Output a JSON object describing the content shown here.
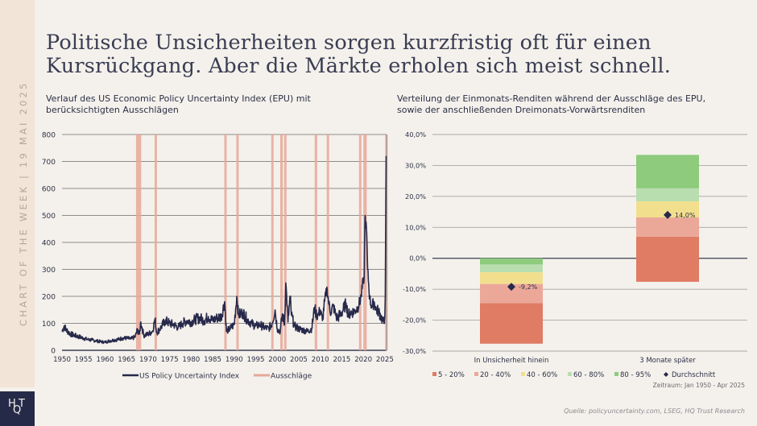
{
  "sidebar": {
    "label": "CHART OF THE WEEK | 19 MAI 2025"
  },
  "logo": {
    "text_top_left": "H",
    "text_bottom": "Q",
    "text_top_right": "T"
  },
  "title": {
    "line1": "Politische Unsicherheiten sorgen kurzfristig oft für einen",
    "line2": "Kursrückgang. Aber die Märkte erholen sich meist schnell."
  },
  "footer": {
    "period": "Zeitraum: Jan 1950 - Apr 2025",
    "source": "Quelle: policyuncertainty.com, LSEG, HQ Trust Research"
  },
  "colors": {
    "line": "#26294a",
    "band": "#e6a899",
    "grid": "#a8a6a2",
    "q5_20": "#e07b64",
    "q20_40": "#eba899",
    "q40_60": "#f2df8e",
    "q60_80": "#b8deb0",
    "q80_95": "#8ecb7d",
    "avg": "#26294a"
  },
  "chart_data": [
    {
      "type": "line",
      "title": "Verlauf des US Economic Policy Uncertainty Index (EPU) mit berücksichtigten Ausschlägen",
      "title_line1": "Verlauf des US Economic Policy Uncertainty Index (EPU) mit",
      "title_line2": "berücksichtigten Ausschlägen",
      "xlabel": "",
      "ylabel": "",
      "xlim": [
        1950,
        2025.4
      ],
      "ylim": [
        0,
        800
      ],
      "x_ticks": [
        "1950",
        "1955",
        "1960",
        "1965",
        "1970",
        "1975",
        "1980",
        "1985",
        "1990",
        "1995",
        "2000",
        "2005",
        "2010",
        "2015",
        "2020",
        "2025"
      ],
      "y_ticks": [
        "0",
        "100",
        "200",
        "300",
        "400",
        "500",
        "600",
        "700",
        "800"
      ],
      "grid": true,
      "legend": {
        "position": "bottom",
        "entries": [
          "US Policy Uncertainty Index",
          "Ausschläge"
        ]
      },
      "series": [
        {
          "name": "US Policy Uncertainty Index",
          "x": [
            1950,
            1950.5,
            1951,
            1952,
            1953,
            1954,
            1955,
            1956,
            1957,
            1958,
            1959,
            1960,
            1961,
            1962,
            1963,
            1964,
            1965,
            1966,
            1967,
            1967.5,
            1968,
            1968.3,
            1969,
            1970,
            1971,
            1971.6,
            1972,
            1973,
            1974,
            1975,
            1976,
            1977,
            1978,
            1979,
            1980,
            1981,
            1982,
            1983,
            1984,
            1985,
            1986,
            1987,
            1987.8,
            1988.2,
            1989,
            1990,
            1990.6,
            1991,
            1992,
            1993,
            1994,
            1995,
            1996,
            1997,
            1998,
            1998.8,
            1999.5,
            2000,
            2000.7,
            2001.2,
            2001.7,
            2002,
            2002.5,
            2003,
            2003.3,
            2004,
            2005,
            2006,
            2007,
            2008,
            2008.7,
            2009,
            2009.5,
            2010,
            2010.5,
            2011,
            2011.6,
            2012,
            2012.5,
            2013,
            2013.7,
            2014,
            2015,
            2016,
            2016.5,
            2017,
            2018,
            2018.7,
            2019,
            2019.5,
            2020,
            2020.2,
            2020.4,
            2020.8,
            2021,
            2021.5,
            2022,
            2022.5,
            2023,
            2023.5,
            2024,
            2024.5,
            2024.9,
            2025.1,
            2025.3
          ],
          "values": [
            70,
            90,
            75,
            60,
            55,
            50,
            45,
            40,
            38,
            35,
            32,
            30,
            35,
            38,
            40,
            45,
            45,
            42,
            50,
            75,
            60,
            105,
            55,
            60,
            70,
            115,
            65,
            85,
            110,
            100,
            95,
            85,
            100,
            110,
            105,
            115,
            120,
            110,
            125,
            110,
            120,
            125,
            180,
            70,
            80,
            95,
            200,
            130,
            140,
            115,
            100,
            90,
            95,
            85,
            80,
            100,
            150,
            80,
            70,
            135,
            95,
            250,
            105,
            200,
            130,
            90,
            80,
            75,
            70,
            80,
            160,
            135,
            130,
            150,
            110,
            180,
            230,
            170,
            140,
            165,
            125,
            120,
            140,
            175,
            130,
            140,
            145,
            160,
            170,
            200,
            260,
            270,
            500,
            430,
            300,
            190,
            160,
            180,
            150,
            145,
            130,
            110,
            100,
            200,
            720
          ]
        }
      ],
      "bands": [
        [
          1967.2,
          1968.4
        ],
        [
          1971.5,
          1971.9
        ],
        [
          1987.7,
          1988.1
        ],
        [
          1990.5,
          1990.9
        ],
        [
          1998.6,
          1999.1
        ],
        [
          2000.7,
          2001.3
        ],
        [
          2001.6,
          2002.1
        ],
        [
          2008.7,
          2009.3
        ],
        [
          2011.5,
          2012.0
        ],
        [
          2019.0,
          2019.5
        ],
        [
          2020.0,
          2020.8
        ],
        [
          2025.1,
          2025.4
        ]
      ]
    },
    {
      "type": "bar",
      "subtype": "stacked-range",
      "title": "Verteilung der Einmonats-Renditen während der Ausschläge des EPU, sowie der anschließenden Dreimonats-Vorwärtsrenditen",
      "title_line1": "Verteilung der Einmonats-Renditen während der Ausschläge des EPU,",
      "title_line2": "sowie der anschließenden Dreimonats-Vorwärtsrenditen",
      "xlabel": "",
      "ylabel": "",
      "ylim": [
        -30,
        40
      ],
      "y_ticks": [
        "-30,0%",
        "-20,0%",
        "-10,0%",
        "0,0%",
        "10,0%",
        "20,0%",
        "30,0%",
        "40,0%"
      ],
      "grid": true,
      "categories": [
        "In Unsicherheit hinein",
        "3 Monate später"
      ],
      "legend": {
        "position": "bottom",
        "entries": [
          "5 - 20%",
          "20 - 40%",
          "40 - 60%",
          "60 - 80%",
          "80 - 95%",
          "Durchschnitt"
        ]
      },
      "series": [
        {
          "name": "5 - 20%",
          "key": "q5_20",
          "ranges": [
            [
              -27.6,
              -14.5
            ],
            [
              -7.6,
              7.0
            ]
          ]
        },
        {
          "name": "20 - 40%",
          "key": "q20_40",
          "ranges": [
            [
              -14.5,
              -8.3
            ],
            [
              7.0,
              13.2
            ]
          ]
        },
        {
          "name": "40 - 60%",
          "key": "q40_60",
          "ranges": [
            [
              -8.3,
              -4.5
            ],
            [
              13.2,
              18.4
            ]
          ]
        },
        {
          "name": "60 - 80%",
          "key": "q60_80",
          "ranges": [
            [
              -4.5,
              -2.0
            ],
            [
              18.4,
              22.6
            ]
          ]
        },
        {
          "name": "80 - 95%",
          "key": "q80_95",
          "ranges": [
            [
              -2.0,
              0.0
            ],
            [
              22.6,
              33.4
            ]
          ]
        }
      ],
      "averages": [
        -9.2,
        14.0
      ],
      "average_labels": [
        "-9,2%",
        "14,0%"
      ]
    }
  ]
}
